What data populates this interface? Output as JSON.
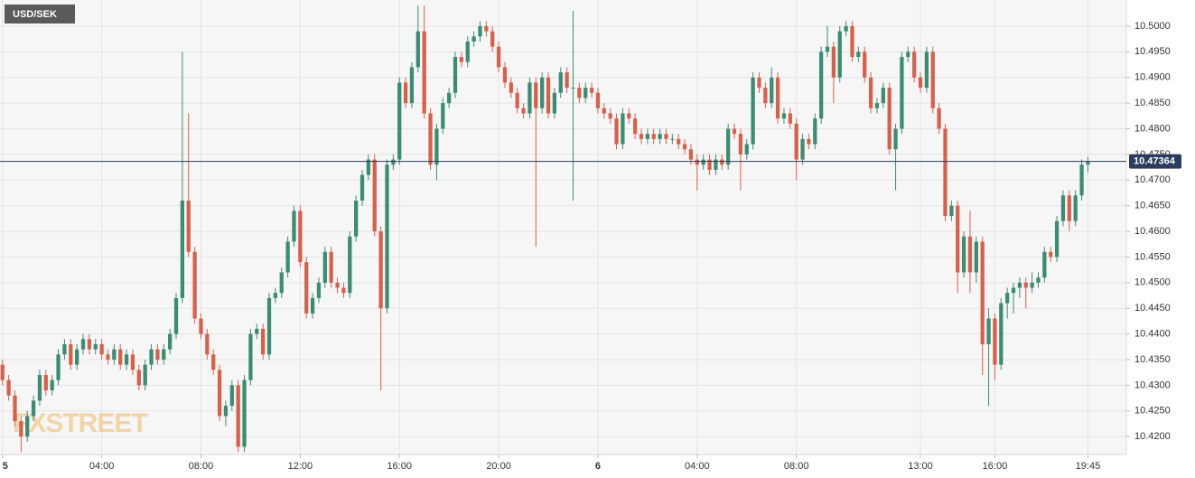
{
  "chart_data": {
    "type": "candlestick",
    "title": "USD/SEK",
    "watermark": "FXSTREET",
    "last_price": 10.47364,
    "up_color": "#3a8c72",
    "down_color": "#d8604b",
    "last_color": "#2c3c5e",
    "grid": true,
    "ylim": [
      10.4165,
      10.5051
    ],
    "xlim": [
      -0.1,
      45.3
    ],
    "yticks": [
      {
        "value": 10.42,
        "label": "10.4200"
      },
      {
        "value": 10.425,
        "label": "10.4250"
      },
      {
        "value": 10.43,
        "label": "10.4300"
      },
      {
        "value": 10.435,
        "label": "10.4350"
      },
      {
        "value": 10.44,
        "label": "10.4400"
      },
      {
        "value": 10.445,
        "label": "10.4450"
      },
      {
        "value": 10.45,
        "label": "10.4500"
      },
      {
        "value": 10.455,
        "label": "10.4550"
      },
      {
        "value": 10.46,
        "label": "10.4600"
      },
      {
        "value": 10.465,
        "label": "10.4650"
      },
      {
        "value": 10.47,
        "label": "10.4700"
      },
      {
        "value": 10.475,
        "label": "10.4750"
      },
      {
        "value": 10.48,
        "label": "10.4800"
      },
      {
        "value": 10.485,
        "label": "10.4850"
      },
      {
        "value": 10.49,
        "label": "10.4900"
      },
      {
        "value": 10.495,
        "label": "10.4950"
      },
      {
        "value": 10.5,
        "label": "10.5000"
      }
    ],
    "xticks": [
      {
        "value": 0,
        "label": "5"
      },
      {
        "value": 4,
        "label": "04:00"
      },
      {
        "value": 8,
        "label": "08:00"
      },
      {
        "value": 12,
        "label": "12:00"
      },
      {
        "value": 16,
        "label": "16:00"
      },
      {
        "value": 20,
        "label": "20:00"
      },
      {
        "value": 24,
        "label": "6"
      },
      {
        "value": 28,
        "label": "04:00"
      },
      {
        "value": 32,
        "label": "08:00"
      },
      {
        "value": 37,
        "label": "13:00"
      },
      {
        "value": 40,
        "label": "16:00"
      },
      {
        "value": 43.75,
        "label": "19:45"
      }
    ],
    "x": [
      0,
      0.25,
      0.5,
      0.75,
      1,
      1.25,
      1.5,
      1.75,
      2,
      2.25,
      2.5,
      2.75,
      3,
      3.25,
      3.5,
      3.75,
      4,
      4.25,
      4.5,
      4.75,
      5,
      5.25,
      5.5,
      5.75,
      6,
      6.25,
      6.5,
      6.75,
      7,
      7.25,
      7.5,
      7.75,
      8,
      8.25,
      8.5,
      8.75,
      9,
      9.25,
      9.5,
      9.75,
      10,
      10.25,
      10.5,
      10.75,
      11,
      11.25,
      11.5,
      11.75,
      12,
      12.25,
      12.5,
      12.75,
      13,
      13.25,
      13.5,
      13.75,
      14,
      14.25,
      14.5,
      14.75,
      15,
      15.25,
      15.5,
      15.75,
      16,
      16.25,
      16.5,
      16.75,
      17,
      17.25,
      17.5,
      17.75,
      18,
      18.25,
      18.5,
      18.75,
      19,
      19.25,
      19.5,
      19.75,
      20,
      20.25,
      20.5,
      20.75,
      21,
      21.25,
      21.5,
      21.75,
      22,
      22.25,
      22.5,
      22.75,
      23,
      23.25,
      23.5,
      23.75,
      24,
      24.25,
      24.5,
      24.75,
      25,
      25.25,
      25.5,
      25.75,
      26,
      26.25,
      26.5,
      26.75,
      27,
      27.25,
      27.5,
      27.75,
      28,
      28.25,
      28.5,
      28.75,
      29,
      29.25,
      29.5,
      29.75,
      30,
      30.25,
      30.5,
      30.75,
      31,
      31.25,
      31.5,
      31.75,
      32,
      32.25,
      32.5,
      32.75,
      33,
      33.25,
      33.5,
      33.75,
      34,
      34.25,
      34.5,
      34.75,
      35,
      35.25,
      35.5,
      35.75,
      36,
      36.25,
      36.5,
      36.75,
      37,
      37.25,
      37.5,
      37.75,
      38,
      38.25,
      38.5,
      38.75,
      39,
      39.25,
      39.5,
      39.75,
      40,
      40.25,
      40.5,
      40.75,
      41,
      41.25,
      41.5,
      41.75,
      42,
      42.25,
      42.5,
      42.75,
      43,
      43.25,
      43.5,
      43.75
    ],
    "open": [
      10.434,
      10.431,
      10.428,
      10.423,
      10.42,
      10.424,
      10.427,
      10.432,
      10.429,
      10.431,
      10.436,
      10.438,
      10.434,
      10.437,
      10.439,
      10.437,
      10.438,
      10.436,
      10.435,
      10.437,
      10.434,
      10.436,
      10.433,
      10.43,
      10.434,
      10.437,
      10.435,
      10.437,
      10.44,
      10.447,
      10.466,
      10.456,
      10.443,
      10.44,
      10.436,
      10.433,
      10.424,
      10.426,
      10.43,
      10.418,
      10.431,
      10.44,
      10.441,
      10.436,
      10.447,
      10.448,
      10.452,
      10.458,
      10.464,
      10.454,
      10.444,
      10.447,
      10.45,
      10.456,
      10.45,
      10.449,
      10.448,
      10.459,
      10.466,
      10.471,
      10.474,
      10.46,
      10.445,
      10.473,
      10.474,
      10.489,
      10.485,
      10.492,
      10.499,
      10.483,
      10.473,
      10.48,
      10.485,
      10.487,
      10.494,
      10.493,
      10.497,
      10.498,
      10.5,
      10.499,
      10.496,
      10.492,
      10.489,
      10.487,
      10.484,
      10.483,
      10.489,
      10.484,
      10.49,
      10.483,
      10.487,
      10.491,
      10.488,
      10.488,
      10.486,
      10.488,
      10.487,
      10.484,
      10.483,
      10.482,
      10.477,
      10.483,
      10.482,
      10.479,
      10.478,
      10.479,
      10.478,
      10.479,
      10.478,
      10.478,
      10.477,
      10.476,
      10.474,
      10.473,
      10.474,
      10.472,
      10.474,
      10.473,
      10.48,
      10.479,
      10.475,
      10.477,
      10.49,
      10.488,
      10.485,
      10.49,
      10.482,
      10.483,
      10.481,
      10.474,
      10.478,
      10.477,
      10.482,
      10.495,
      10.496,
      10.49,
      10.499,
      10.5,
      10.494,
      10.495,
      10.49,
      10.484,
      10.485,
      10.488,
      10.476,
      10.48,
      10.494,
      10.495,
      10.49,
      10.488,
      10.495,
      10.484,
      10.48,
      10.463,
      10.465,
      10.452,
      10.459,
      10.452,
      10.458,
      10.438,
      10.443,
      10.434,
      10.446,
      10.448,
      10.449,
      10.45,
      10.449,
      10.45,
      10.451,
      10.456,
      10.455,
      10.462,
      10.467,
      10.462,
      10.467,
      10.473
    ],
    "high": [
      10.435,
      10.432,
      10.429,
      10.424,
      10.425,
      10.428,
      10.433,
      10.433,
      10.432,
      10.437,
      10.439,
      10.439,
      10.438,
      10.44,
      10.44,
      10.439,
      10.439,
      10.437,
      10.438,
      10.438,
      10.437,
      10.437,
      10.434,
      10.435,
      10.438,
      10.438,
      10.438,
      10.441,
      10.448,
      10.495,
      10.483,
      10.457,
      10.444,
      10.441,
      10.437,
      10.434,
      10.427,
      10.431,
      10.431,
      10.432,
      10.441,
      10.442,
      10.442,
      10.448,
      10.449,
      10.453,
      10.459,
      10.465,
      10.465,
      10.455,
      10.448,
      10.451,
      10.457,
      10.457,
      10.451,
      10.45,
      10.46,
      10.467,
      10.472,
      10.475,
      10.475,
      10.461,
      10.474,
      10.475,
      10.49,
      10.49,
      10.493,
      10.504,
      10.504,
      10.484,
      10.481,
      10.486,
      10.488,
      10.495,
      10.495,
      10.498,
      10.499,
      10.501,
      10.501,
      10.5,
      10.497,
      10.493,
      10.49,
      10.488,
      10.485,
      10.49,
      10.49,
      10.491,
      10.491,
      10.488,
      10.492,
      10.492,
      10.503,
      10.489,
      10.489,
      10.489,
      10.488,
      10.485,
      10.484,
      10.483,
      10.484,
      10.484,
      10.483,
      10.48,
      10.48,
      10.48,
      10.48,
      10.48,
      10.479,
      10.479,
      10.478,
      10.477,
      10.475,
      10.475,
      10.475,
      10.475,
      10.475,
      10.481,
      10.481,
      10.48,
      10.478,
      10.491,
      10.491,
      10.489,
      10.492,
      10.491,
      10.484,
      10.484,
      10.482,
      10.479,
      10.479,
      10.483,
      10.496,
      10.5,
      10.497,
      10.5,
      10.501,
      10.501,
      10.496,
      10.496,
      10.491,
      10.486,
      10.489,
      10.489,
      10.481,
      10.495,
      10.496,
      10.496,
      10.491,
      10.496,
      10.496,
      10.485,
      10.481,
      10.466,
      10.466,
      10.46,
      10.464,
      10.459,
      10.459,
      10.445,
      10.444,
      10.447,
      10.449,
      10.45,
      10.451,
      10.451,
      10.452,
      10.452,
      10.457,
      10.457,
      10.463,
      10.468,
      10.468,
      10.468,
      10.474,
      10.4745
    ],
    "low": [
      10.43,
      10.427,
      10.422,
      10.417,
      10.419,
      10.423,
      10.426,
      10.428,
      10.428,
      10.43,
      10.435,
      10.433,
      10.433,
      10.436,
      10.436,
      10.436,
      10.435,
      10.434,
      10.434,
      10.433,
      10.433,
      10.432,
      10.429,
      10.429,
      10.433,
      10.434,
      10.434,
      10.436,
      10.439,
      10.446,
      10.455,
      10.442,
      10.439,
      10.435,
      10.432,
      10.423,
      10.422,
      10.425,
      10.417,
      10.417,
      10.43,
      10.439,
      10.435,
      10.435,
      10.446,
      10.447,
      10.451,
      10.457,
      10.453,
      10.443,
      10.443,
      10.446,
      10.449,
      10.449,
      10.448,
      10.447,
      10.447,
      10.458,
      10.465,
      10.47,
      10.459,
      10.429,
      10.444,
      10.472,
      10.473,
      10.484,
      10.484,
      10.491,
      10.482,
      10.472,
      10.47,
      10.479,
      10.484,
      10.486,
      10.492,
      10.492,
      10.496,
      10.497,
      10.498,
      10.495,
      10.491,
      10.488,
      10.486,
      10.483,
      10.482,
      10.482,
      10.457,
      10.483,
      10.482,
      10.482,
      10.486,
      10.487,
      10.466,
      10.485,
      10.485,
      10.486,
      10.483,
      10.482,
      10.481,
      10.476,
      10.476,
      10.481,
      10.478,
      10.477,
      10.477,
      10.477,
      10.477,
      10.477,
      10.477,
      10.476,
      10.475,
      10.473,
      10.468,
      10.472,
      10.471,
      10.471,
      10.472,
      10.472,
      10.478,
      10.468,
      10.474,
      10.476,
      10.487,
      10.484,
      10.484,
      10.481,
      10.481,
      10.48,
      10.47,
      10.473,
      10.476,
      10.476,
      10.481,
      10.494,
      10.485,
      10.489,
      10.498,
      10.493,
      10.493,
      10.489,
      10.483,
      10.483,
      10.484,
      10.475,
      10.468,
      10.479,
      10.493,
      10.489,
      10.487,
      10.487,
      10.483,
      10.479,
      10.462,
      10.462,
      10.448,
      10.451,
      10.448,
      10.45,
      10.432,
      10.426,
      10.431,
      10.433,
      10.443,
      10.444,
      10.447,
      10.445,
      10.448,
      10.449,
      10.45,
      10.454,
      10.454,
      10.461,
      10.46,
      10.461,
      10.466,
      10.4715
    ],
    "close": [
      10.431,
      10.428,
      10.423,
      10.42,
      10.424,
      10.427,
      10.432,
      10.429,
      10.431,
      10.436,
      10.438,
      10.434,
      10.437,
      10.439,
      10.437,
      10.438,
      10.436,
      10.435,
      10.437,
      10.434,
      10.436,
      10.433,
      10.43,
      10.434,
      10.437,
      10.435,
      10.437,
      10.44,
      10.447,
      10.466,
      10.456,
      10.443,
      10.44,
      10.436,
      10.433,
      10.424,
      10.426,
      10.43,
      10.418,
      10.431,
      10.44,
      10.441,
      10.436,
      10.447,
      10.448,
      10.452,
      10.458,
      10.464,
      10.454,
      10.444,
      10.447,
      10.45,
      10.456,
      10.45,
      10.449,
      10.448,
      10.459,
      10.466,
      10.471,
      10.474,
      10.46,
      10.445,
      10.473,
      10.474,
      10.489,
      10.485,
      10.492,
      10.499,
      10.483,
      10.473,
      10.48,
      10.485,
      10.487,
      10.494,
      10.493,
      10.497,
      10.498,
      10.5,
      10.499,
      10.496,
      10.492,
      10.489,
      10.487,
      10.484,
      10.483,
      10.489,
      10.484,
      10.49,
      10.483,
      10.487,
      10.491,
      10.488,
      10.488,
      10.486,
      10.488,
      10.487,
      10.484,
      10.483,
      10.482,
      10.477,
      10.483,
      10.482,
      10.479,
      10.478,
      10.479,
      10.478,
      10.479,
      10.478,
      10.478,
      10.477,
      10.476,
      10.474,
      10.473,
      10.474,
      10.472,
      10.474,
      10.473,
      10.48,
      10.479,
      10.475,
      10.477,
      10.49,
      10.488,
      10.485,
      10.49,
      10.482,
      10.483,
      10.481,
      10.474,
      10.478,
      10.477,
      10.482,
      10.495,
      10.496,
      10.49,
      10.499,
      10.5,
      10.494,
      10.495,
      10.49,
      10.484,
      10.485,
      10.488,
      10.476,
      10.48,
      10.494,
      10.495,
      10.49,
      10.488,
      10.495,
      10.484,
      10.48,
      10.463,
      10.465,
      10.452,
      10.459,
      10.452,
      10.458,
      10.438,
      10.443,
      10.434,
      10.446,
      10.448,
      10.449,
      10.45,
      10.449,
      10.45,
      10.451,
      10.456,
      10.455,
      10.462,
      10.467,
      10.462,
      10.467,
      10.473,
      10.4736
    ]
  }
}
